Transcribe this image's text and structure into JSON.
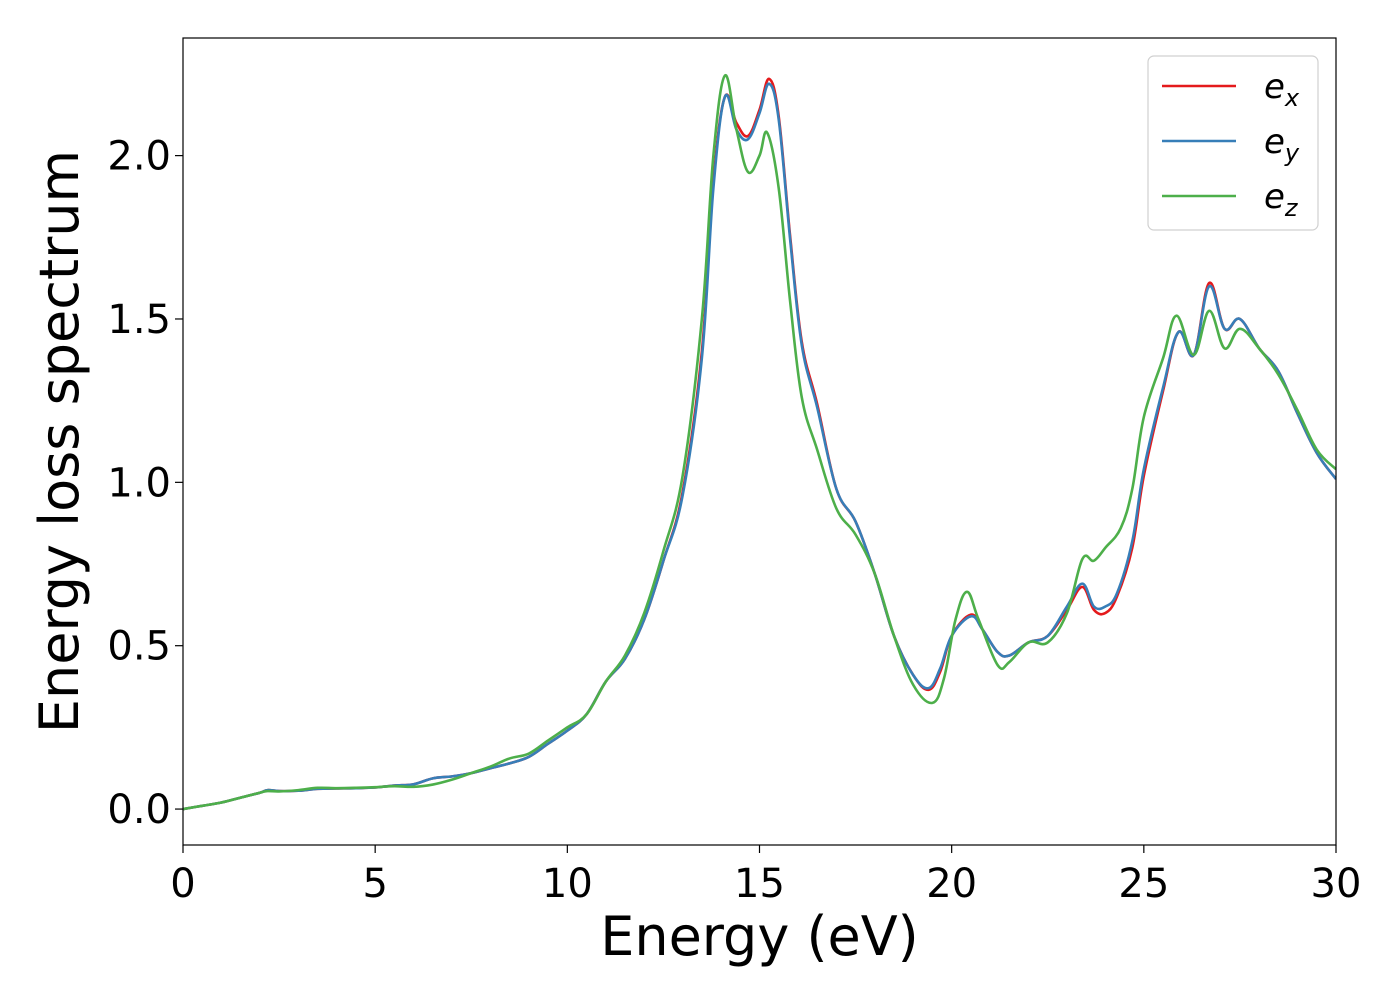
{
  "chart_data": {
    "type": "line",
    "title": "",
    "xlabel": "Energy (eV)",
    "ylabel": "Energy loss spectrum",
    "xlim": [
      0,
      30
    ],
    "ylim": [
      -0.11,
      2.36
    ],
    "xticks": [
      0,
      5,
      10,
      15,
      20,
      25,
      30
    ],
    "xtick_labels": [
      "0",
      "5",
      "10",
      "15",
      "20",
      "25",
      "30"
    ],
    "yticks": [
      0.0,
      0.5,
      1.0,
      1.5,
      2.0
    ],
    "ytick_labels": [
      "0.0",
      "0.5",
      "1.0",
      "1.5",
      "2.0"
    ],
    "grid": false,
    "legend_position": "top-right",
    "series": [
      {
        "name": "e_x",
        "base": "e",
        "sub": "x",
        "color": "#e41a1c",
        "points": [
          [
            0,
            0
          ],
          [
            0.5,
            0.01
          ],
          [
            1,
            0.02
          ],
          [
            1.5,
            0.035
          ],
          [
            2,
            0.05
          ],
          [
            2.2,
            0.058
          ],
          [
            2.5,
            0.055
          ],
          [
            3,
            0.056
          ],
          [
            3.5,
            0.062
          ],
          [
            4,
            0.063
          ],
          [
            4.5,
            0.064
          ],
          [
            5,
            0.066
          ],
          [
            5.5,
            0.072
          ],
          [
            6,
            0.076
          ],
          [
            6.5,
            0.094
          ],
          [
            7,
            0.1
          ],
          [
            7.5,
            0.11
          ],
          [
            8,
            0.125
          ],
          [
            8.5,
            0.14
          ],
          [
            9,
            0.16
          ],
          [
            9.5,
            0.2
          ],
          [
            10,
            0.24
          ],
          [
            10.5,
            0.29
          ],
          [
            11,
            0.39
          ],
          [
            11.5,
            0.46
          ],
          [
            12,
            0.58
          ],
          [
            12.5,
            0.76
          ],
          [
            13,
            0.97
          ],
          [
            13.5,
            1.4
          ],
          [
            13.8,
            1.92
          ],
          [
            14.1,
            2.18
          ],
          [
            14.4,
            2.1
          ],
          [
            14.7,
            2.06
          ],
          [
            15,
            2.14
          ],
          [
            15.25,
            2.235
          ],
          [
            15.5,
            2.12
          ],
          [
            15.8,
            1.75
          ],
          [
            16.1,
            1.43
          ],
          [
            16.5,
            1.24
          ],
          [
            17,
            0.98
          ],
          [
            17.5,
            0.88
          ],
          [
            18,
            0.72
          ],
          [
            18.5,
            0.53
          ],
          [
            19,
            0.41
          ],
          [
            19.4,
            0.365
          ],
          [
            19.7,
            0.42
          ],
          [
            20,
            0.53
          ],
          [
            20.5,
            0.595
          ],
          [
            20.8,
            0.55
          ],
          [
            21.2,
            0.48
          ],
          [
            21.5,
            0.47
          ],
          [
            22,
            0.51
          ],
          [
            22.5,
            0.53
          ],
          [
            23,
            0.61
          ],
          [
            23.4,
            0.68
          ],
          [
            23.7,
            0.61
          ],
          [
            24,
            0.6
          ],
          [
            24.3,
            0.65
          ],
          [
            24.7,
            0.8
          ],
          [
            25,
            1.02
          ],
          [
            25.5,
            1.28
          ],
          [
            25.9,
            1.46
          ],
          [
            26.3,
            1.39
          ],
          [
            26.7,
            1.61
          ],
          [
            27.1,
            1.47
          ],
          [
            27.5,
            1.5
          ],
          [
            28,
            1.41
          ],
          [
            28.5,
            1.34
          ],
          [
            29,
            1.21
          ],
          [
            29.5,
            1.09
          ],
          [
            30,
            1.01
          ]
        ]
      },
      {
        "name": "e_y",
        "base": "e",
        "sub": "y",
        "color": "#377eb8",
        "points": [
          [
            0,
            0
          ],
          [
            0.5,
            0.01
          ],
          [
            1,
            0.02
          ],
          [
            1.5,
            0.035
          ],
          [
            2,
            0.05
          ],
          [
            2.2,
            0.058
          ],
          [
            2.5,
            0.055
          ],
          [
            3,
            0.056
          ],
          [
            3.5,
            0.062
          ],
          [
            4,
            0.063
          ],
          [
            4.5,
            0.064
          ],
          [
            5,
            0.066
          ],
          [
            5.5,
            0.072
          ],
          [
            6,
            0.076
          ],
          [
            6.5,
            0.094
          ],
          [
            7,
            0.1
          ],
          [
            7.5,
            0.11
          ],
          [
            8,
            0.125
          ],
          [
            8.5,
            0.14
          ],
          [
            9,
            0.16
          ],
          [
            9.5,
            0.2
          ],
          [
            10,
            0.24
          ],
          [
            10.5,
            0.29
          ],
          [
            11,
            0.39
          ],
          [
            11.5,
            0.46
          ],
          [
            12,
            0.58
          ],
          [
            12.5,
            0.76
          ],
          [
            13,
            0.96
          ],
          [
            13.5,
            1.38
          ],
          [
            13.8,
            1.9
          ],
          [
            14.1,
            2.18
          ],
          [
            14.4,
            2.08
          ],
          [
            14.7,
            2.05
          ],
          [
            15,
            2.13
          ],
          [
            15.25,
            2.22
          ],
          [
            15.5,
            2.11
          ],
          [
            15.8,
            1.74
          ],
          [
            16.1,
            1.42
          ],
          [
            16.5,
            1.23
          ],
          [
            17,
            0.98
          ],
          [
            17.5,
            0.88
          ],
          [
            18,
            0.72
          ],
          [
            18.5,
            0.53
          ],
          [
            19,
            0.41
          ],
          [
            19.4,
            0.37
          ],
          [
            19.7,
            0.43
          ],
          [
            20,
            0.53
          ],
          [
            20.5,
            0.59
          ],
          [
            20.8,
            0.55
          ],
          [
            21.2,
            0.48
          ],
          [
            21.5,
            0.47
          ],
          [
            22,
            0.51
          ],
          [
            22.5,
            0.53
          ],
          [
            23,
            0.62
          ],
          [
            23.4,
            0.69
          ],
          [
            23.7,
            0.62
          ],
          [
            24,
            0.62
          ],
          [
            24.3,
            0.66
          ],
          [
            24.7,
            0.82
          ],
          [
            25,
            1.04
          ],
          [
            25.5,
            1.29
          ],
          [
            25.9,
            1.46
          ],
          [
            26.3,
            1.39
          ],
          [
            26.7,
            1.6
          ],
          [
            27.1,
            1.47
          ],
          [
            27.5,
            1.5
          ],
          [
            28,
            1.41
          ],
          [
            28.5,
            1.34
          ],
          [
            29,
            1.21
          ],
          [
            29.5,
            1.09
          ],
          [
            30,
            1.01
          ]
        ]
      },
      {
        "name": "e_z",
        "base": "e",
        "sub": "z",
        "color": "#4daf4a",
        "points": [
          [
            0,
            0
          ],
          [
            0.5,
            0.01
          ],
          [
            1,
            0.02
          ],
          [
            1.5,
            0.035
          ],
          [
            2,
            0.05
          ],
          [
            2.2,
            0.055
          ],
          [
            2.5,
            0.054
          ],
          [
            3,
            0.058
          ],
          [
            3.5,
            0.065
          ],
          [
            4,
            0.064
          ],
          [
            4.5,
            0.065
          ],
          [
            5,
            0.067
          ],
          [
            5.5,
            0.07
          ],
          [
            6,
            0.068
          ],
          [
            6.5,
            0.075
          ],
          [
            7,
            0.09
          ],
          [
            7.5,
            0.11
          ],
          [
            8,
            0.13
          ],
          [
            8.5,
            0.155
          ],
          [
            9,
            0.17
          ],
          [
            9.5,
            0.21
          ],
          [
            10,
            0.25
          ],
          [
            10.5,
            0.29
          ],
          [
            11,
            0.39
          ],
          [
            11.5,
            0.47
          ],
          [
            12,
            0.6
          ],
          [
            12.5,
            0.79
          ],
          [
            13,
            1.02
          ],
          [
            13.5,
            1.5
          ],
          [
            13.8,
            2.0
          ],
          [
            14.1,
            2.245
          ],
          [
            14.4,
            2.08
          ],
          [
            14.7,
            1.95
          ],
          [
            15,
            2.0
          ],
          [
            15.2,
            2.07
          ],
          [
            15.5,
            1.9
          ],
          [
            15.8,
            1.55
          ],
          [
            16.1,
            1.26
          ],
          [
            16.5,
            1.1
          ],
          [
            17,
            0.92
          ],
          [
            17.5,
            0.84
          ],
          [
            18,
            0.72
          ],
          [
            18.5,
            0.53
          ],
          [
            19,
            0.38
          ],
          [
            19.5,
            0.325
          ],
          [
            19.8,
            0.4
          ],
          [
            20.1,
            0.58
          ],
          [
            20.4,
            0.665
          ],
          [
            20.7,
            0.58
          ],
          [
            21.2,
            0.44
          ],
          [
            21.5,
            0.45
          ],
          [
            22,
            0.51
          ],
          [
            22.5,
            0.51
          ],
          [
            23,
            0.6
          ],
          [
            23.4,
            0.765
          ],
          [
            23.7,
            0.76
          ],
          [
            24,
            0.8
          ],
          [
            24.4,
            0.86
          ],
          [
            24.7,
            0.98
          ],
          [
            25,
            1.2
          ],
          [
            25.5,
            1.38
          ],
          [
            25.85,
            1.51
          ],
          [
            26.3,
            1.39
          ],
          [
            26.7,
            1.525
          ],
          [
            27.1,
            1.41
          ],
          [
            27.5,
            1.47
          ],
          [
            28,
            1.41
          ],
          [
            28.5,
            1.33
          ],
          [
            29,
            1.22
          ],
          [
            29.5,
            1.1
          ],
          [
            30,
            1.04
          ]
        ]
      }
    ]
  }
}
